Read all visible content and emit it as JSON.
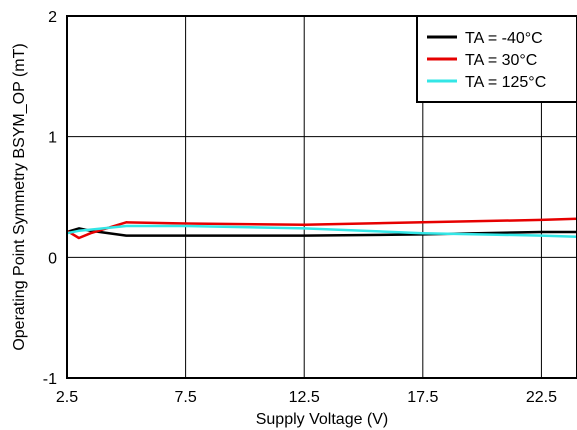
{
  "chart_data": {
    "type": "line",
    "title": "",
    "xlabel": "Supply Voltage (V)",
    "ylabel": "Operating Point Symmetry BSYM_OP (mT)",
    "xlim": [
      2.5,
      24
    ],
    "ylim": [
      -1,
      2
    ],
    "xticks": [
      "2.5",
      "7.5",
      "12.5",
      "17.5",
      "22.5"
    ],
    "yticks": [
      "-1",
      "0",
      "1",
      "2"
    ],
    "grid": true,
    "legend_position": "top-right",
    "series": [
      {
        "name": "TA = -40°C",
        "color": "#000000",
        "x": [
          2.5,
          3,
          3.5,
          5,
          7.5,
          12.5,
          17.5,
          22.5,
          24
        ],
        "y": [
          0.21,
          0.24,
          0.22,
          0.18,
          0.18,
          0.18,
          0.19,
          0.21,
          0.21
        ]
      },
      {
        "name": "TA = 30°C",
        "color": "#e60000",
        "x": [
          2.5,
          3,
          3.5,
          5,
          7.5,
          12.5,
          17.5,
          22.5,
          24
        ],
        "y": [
          0.22,
          0.16,
          0.2,
          0.29,
          0.28,
          0.27,
          0.29,
          0.31,
          0.32
        ]
      },
      {
        "name": "TA = 125°C",
        "color": "#33e6e6",
        "x": [
          2.5,
          3,
          3.5,
          5,
          7.5,
          12.5,
          17.5,
          22.5,
          24
        ],
        "y": [
          0.2,
          0.22,
          0.23,
          0.26,
          0.26,
          0.24,
          0.2,
          0.18,
          0.17
        ]
      }
    ]
  }
}
